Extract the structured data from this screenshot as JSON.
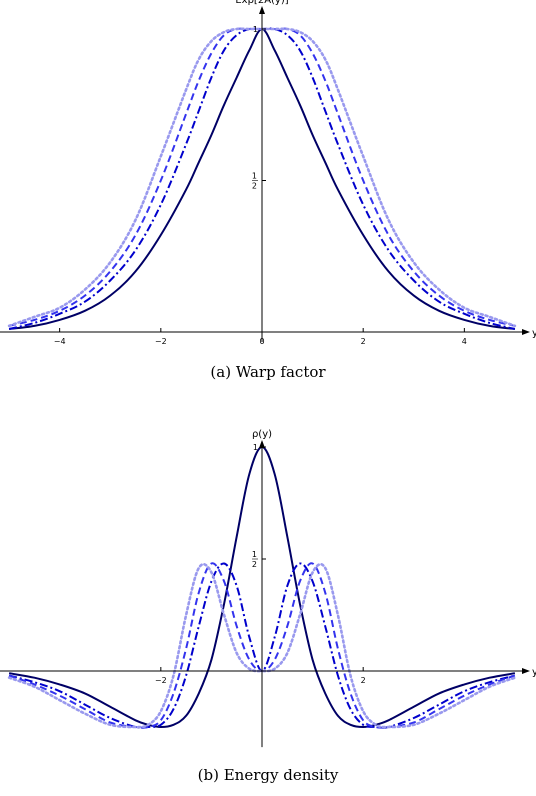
{
  "chart_data": [
    {
      "type": "line",
      "caption": "(a)  Warp factor",
      "xlabel": "y",
      "ylabel": "Exp[2A(y)]",
      "x_ticks": [
        -4,
        -2,
        0,
        2,
        4
      ],
      "x_tick_labels": [
        "−4",
        "−2",
        "0",
        "2",
        "4"
      ],
      "y_ticks": [
        {
          "value": 0.5,
          "num": "1",
          "den": "2"
        },
        {
          "value": 1,
          "num": "1",
          "den": ""
        }
      ],
      "xlim": [
        -5.1,
        5.1
      ],
      "ylim": [
        0,
        1
      ],
      "x": [
        -5,
        -4.5,
        -4,
        -3.5,
        -3,
        -2.5,
        -2,
        -1.5,
        -1.25,
        -1,
        -0.75,
        -0.5,
        -0.25,
        0,
        0.25,
        0.5,
        0.75,
        1,
        1.25,
        1.5,
        2,
        2.5,
        3,
        3.5,
        4,
        4.5,
        5
      ],
      "series": [
        {
          "style": "solid",
          "color": "#000066",
          "values": [
            0.01,
            0.02,
            0.04,
            0.07,
            0.12,
            0.2,
            0.32,
            0.47,
            0.56,
            0.65,
            0.75,
            0.84,
            0.93,
            1,
            0.93,
            0.84,
            0.75,
            0.65,
            0.56,
            0.47,
            0.32,
            0.2,
            0.12,
            0.07,
            0.04,
            0.02,
            0.01
          ]
        },
        {
          "style": "dash-dot",
          "color": "#0000cc",
          "values": [
            0.01,
            0.03,
            0.06,
            0.1,
            0.17,
            0.27,
            0.42,
            0.62,
            0.73,
            0.84,
            0.93,
            0.98,
            1,
            1,
            1,
            0.98,
            0.93,
            0.84,
            0.73,
            0.62,
            0.42,
            0.27,
            0.17,
            0.1,
            0.06,
            0.03,
            0.01
          ]
        },
        {
          "style": "dashed",
          "color": "#3333ee",
          "values": [
            0.02,
            0.04,
            0.07,
            0.12,
            0.2,
            0.32,
            0.5,
            0.72,
            0.83,
            0.92,
            0.98,
            1,
            1,
            1,
            1,
            1,
            0.98,
            0.92,
            0.83,
            0.72,
            0.5,
            0.32,
            0.2,
            0.12,
            0.07,
            0.04,
            0.02
          ]
        },
        {
          "style": "dotted",
          "color": "#9999ee",
          "values": [
            0.02,
            0.05,
            0.08,
            0.14,
            0.23,
            0.37,
            0.58,
            0.8,
            0.9,
            0.96,
            0.99,
            1,
            1,
            1,
            1,
            1,
            0.99,
            0.96,
            0.9,
            0.8,
            0.58,
            0.37,
            0.23,
            0.14,
            0.08,
            0.05,
            0.02
          ]
        }
      ]
    },
    {
      "type": "line",
      "caption": "(b)  Energy density",
      "xlabel": "y",
      "ylabel": "ρ(y)",
      "x_ticks": [
        -2,
        2
      ],
      "x_tick_labels": [
        "−2",
        "2"
      ],
      "y_ticks": [
        {
          "value": 0.5,
          "num": "1",
          "den": "2"
        },
        {
          "value": 1,
          "num": "1",
          "den": ""
        }
      ],
      "xlim": [
        -5.1,
        5.1
      ],
      "ylim": [
        -0.34,
        1.06
      ],
      "x": [
        -5,
        -4.5,
        -4,
        -3.5,
        -3,
        -2.5,
        -2.25,
        -2,
        -1.75,
        -1.5,
        -1.25,
        -1,
        -0.75,
        -0.5,
        -0.25,
        0,
        0.25,
        0.5,
        0.75,
        1,
        1.25,
        1.5,
        1.75,
        2,
        2.25,
        2.5,
        3,
        3.5,
        4,
        4.5,
        5
      ],
      "series": [
        {
          "style": "solid",
          "color": "#000066",
          "values": [
            -0.01,
            -0.03,
            -0.06,
            -0.1,
            -0.16,
            -0.22,
            -0.24,
            -0.25,
            -0.24,
            -0.2,
            -0.1,
            0.05,
            0.3,
            0.6,
            0.88,
            1,
            0.88,
            0.6,
            0.3,
            0.05,
            -0.1,
            -0.2,
            -0.24,
            -0.25,
            -0.24,
            -0.22,
            -0.16,
            -0.1,
            -0.06,
            -0.03,
            -0.01
          ]
        },
        {
          "style": "dash-dot",
          "color": "#0000cc",
          "values": [
            -0.02,
            -0.05,
            -0.09,
            -0.15,
            -0.21,
            -0.25,
            -0.25,
            -0.24,
            -0.17,
            -0.02,
            0.2,
            0.4,
            0.48,
            0.38,
            0.15,
            0,
            0.15,
            0.38,
            0.48,
            0.4,
            0.2,
            -0.02,
            -0.17,
            -0.24,
            -0.25,
            -0.25,
            -0.21,
            -0.15,
            -0.09,
            -0.05,
            -0.02
          ]
        },
        {
          "style": "dashed",
          "color": "#3333ee",
          "values": [
            -0.02,
            -0.06,
            -0.11,
            -0.17,
            -0.23,
            -0.25,
            -0.25,
            -0.22,
            -0.1,
            0.1,
            0.35,
            0.48,
            0.4,
            0.2,
            0.05,
            0,
            0.05,
            0.2,
            0.4,
            0.48,
            0.35,
            0.1,
            -0.1,
            -0.22,
            -0.25,
            -0.25,
            -0.23,
            -0.17,
            -0.11,
            -0.06,
            -0.02
          ]
        },
        {
          "style": "dotted",
          "color": "#9999ee",
          "values": [
            -0.03,
            -0.07,
            -0.13,
            -0.19,
            -0.24,
            -0.25,
            -0.24,
            -0.18,
            -0.02,
            0.25,
            0.46,
            0.44,
            0.25,
            0.08,
            0.01,
            0,
            0.01,
            0.08,
            0.25,
            0.44,
            0.46,
            0.25,
            -0.02,
            -0.18,
            -0.24,
            -0.25,
            -0.24,
            -0.19,
            -0.13,
            -0.07,
            -0.03
          ]
        }
      ]
    }
  ]
}
